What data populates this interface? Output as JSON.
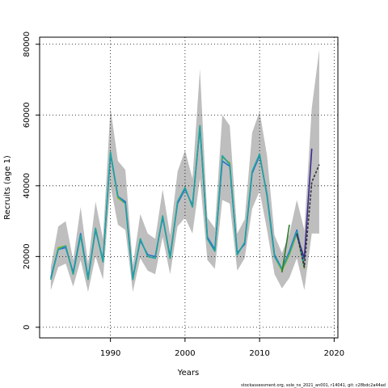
{
  "chart_data": {
    "type": "line",
    "xlabel": "Years",
    "ylabel": "Recruits (age 1)",
    "xlim": [
      1980.5,
      2020.5
    ],
    "ylim": [
      -3000,
      82000
    ],
    "x_ticks": [
      1990,
      2000,
      2010,
      2020
    ],
    "y_ticks": [
      0,
      20000,
      40000,
      60000,
      80000
    ],
    "grid": true,
    "footer": "stockassessment.org,  sole_ns_2021_an001,  r14041,  git: c28bdc2a44ad",
    "confidence_band": {
      "x": [
        1982,
        1983,
        1984,
        1985,
        1986,
        1987,
        1988,
        1989,
        1990,
        1991,
        1992,
        1993,
        1994,
        1995,
        1996,
        1997,
        1998,
        1999,
        2000,
        2001,
        2002,
        2003,
        2004,
        2005,
        2006,
        2007,
        2008,
        2009,
        2010,
        2011,
        2012,
        2013,
        2014,
        2015,
        2016,
        2017,
        2018
      ],
      "lower": [
        10500,
        17000,
        18000,
        11500,
        19000,
        10000,
        20000,
        13500,
        40000,
        29000,
        27500,
        10000,
        19500,
        16000,
        15000,
        25500,
        15000,
        28500,
        31000,
        26500,
        42000,
        19000,
        16500,
        36000,
        35000,
        16000,
        19500,
        33500,
        38500,
        27500,
        15000,
        11000,
        14000,
        19500,
        10500,
        26500,
        26500
      ],
      "upper": [
        17000,
        28500,
        30000,
        19000,
        34000,
        18000,
        35500,
        25000,
        62000,
        47000,
        44500,
        17500,
        32000,
        26500,
        25000,
        39000,
        26000,
        44000,
        50000,
        42000,
        73000,
        31000,
        28000,
        60000,
        57000,
        26500,
        30500,
        55000,
        61000,
        48500,
        26000,
        21000,
        26500,
        36000,
        27500,
        62000,
        78500
      ]
    },
    "series": [
      {
        "values": [
          13500,
          22500,
          23000,
          15000,
          26000,
          13500,
          28000,
          18500,
          49500,
          36500,
          35000,
          13500,
          25000,
          20000,
          19500,
          31500,
          19500,
          35500,
          39500,
          34000,
          57000,
          25000,
          21500,
          48000,
          46500,
          20500,
          24000,
          44000,
          49000,
          37000,
          20000,
          16000,
          20500,
          26500,
          16500,
          null,
          null
        ],
        "color": "#8db51e"
      },
      {
        "values": [
          14000,
          22000,
          22500,
          15500,
          26500,
          14000,
          27500,
          19000,
          49000,
          37000,
          35500,
          14000,
          24500,
          20500,
          20000,
          31000,
          20000,
          35000,
          39000,
          34500,
          56500,
          25500,
          22000,
          47000,
          45500,
          21000,
          23500,
          43500,
          48500,
          37500,
          20500,
          16500,
          21500,
          27500,
          17500,
          null,
          null
        ],
        "color": "#2a6fc9"
      },
      {
        "values": [
          13500,
          22000,
          23000,
          15000,
          26000,
          13500,
          28000,
          18500,
          49500,
          37000,
          35000,
          13500,
          25000,
          20000,
          19500,
          31500,
          19500,
          35500,
          39500,
          34000,
          57000,
          25000,
          21500,
          48500,
          46000,
          20500,
          24000,
          44000,
          49000,
          37000,
          20000,
          16500,
          21000,
          27000,
          17000,
          null,
          null
        ],
        "color": "#1fa3a3"
      },
      {
        "values": [
          null,
          null,
          null,
          null,
          null,
          null,
          null,
          null,
          null,
          null,
          null,
          null,
          null,
          null,
          null,
          null,
          null,
          null,
          null,
          null,
          null,
          null,
          null,
          null,
          null,
          null,
          null,
          null,
          null,
          null,
          null,
          15500,
          29000,
          null,
          null,
          null,
          null
        ],
        "color": "#2f7a2f"
      },
      {
        "values": [
          null,
          null,
          null,
          null,
          null,
          null,
          null,
          null,
          null,
          null,
          null,
          null,
          null,
          null,
          null,
          null,
          null,
          null,
          null,
          null,
          null,
          null,
          null,
          null,
          null,
          null,
          null,
          null,
          null,
          null,
          null,
          null,
          null,
          26000,
          19500,
          50500,
          null
        ],
        "color": "#3a2a8f"
      },
      {
        "values": [
          null,
          null,
          null,
          null,
          null,
          null,
          null,
          null,
          null,
          null,
          null,
          null,
          null,
          null,
          null,
          null,
          null,
          null,
          null,
          null,
          null,
          null,
          null,
          null,
          null,
          null,
          null,
          null,
          null,
          null,
          null,
          null,
          null,
          26500,
          17000,
          41000,
          46000
        ],
        "color": "#333333",
        "dashed": true
      }
    ]
  }
}
